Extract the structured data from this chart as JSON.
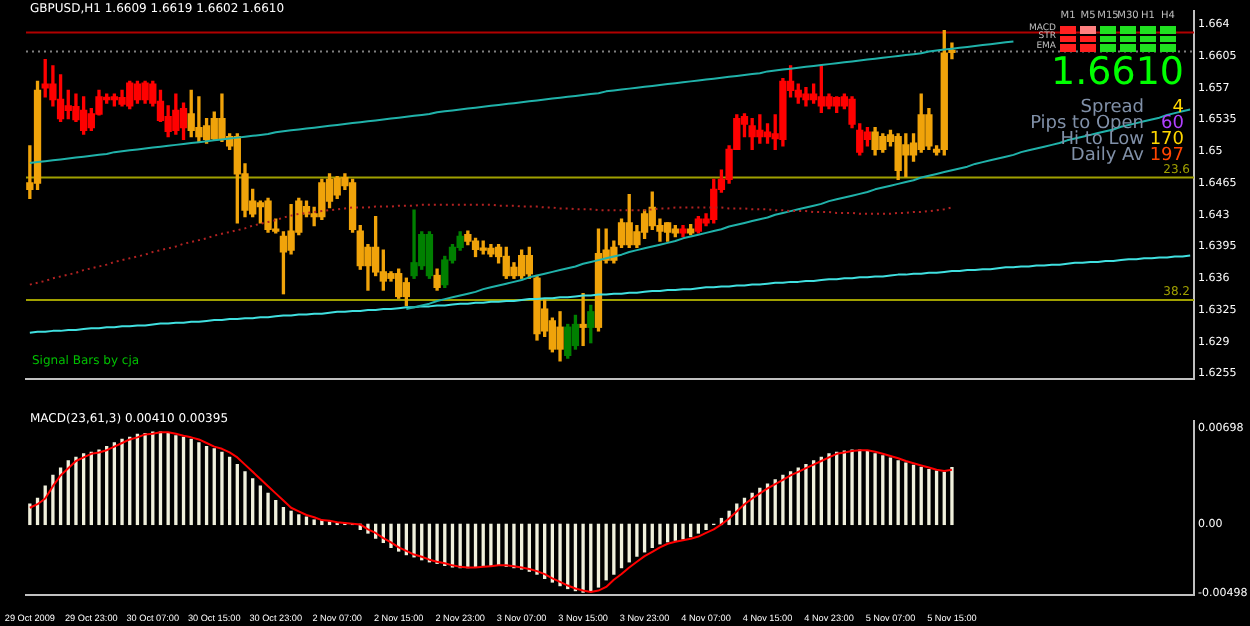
{
  "chart_data": [
    {
      "type": "candlestick",
      "title": "GBPUSD,H1 1.6609 1.6619 1.6602 1.6610",
      "categories": [
        null,
        null,
        null,
        null,
        null,
        null,
        null,
        null,
        null,
        null,
        null,
        null,
        null,
        null,
        null,
        null,
        null,
        null,
        null,
        null,
        null,
        null,
        null,
        null,
        null,
        null,
        null,
        null,
        null,
        null,
        null,
        null,
        null,
        null,
        null,
        null,
        null,
        null,
        null,
        null,
        null,
        null,
        null,
        null,
        null,
        null,
        null,
        null,
        null,
        null,
        null,
        null,
        null,
        null,
        null,
        null,
        null,
        null,
        null,
        null,
        null,
        null,
        null,
        null,
        null,
        null,
        null,
        null,
        null,
        null,
        null,
        null,
        null,
        null,
        null,
        null,
        null,
        null,
        null,
        null,
        null,
        null,
        null,
        null,
        null,
        null,
        null,
        null,
        null,
        null,
        null,
        null,
        null,
        null,
        null,
        null,
        null,
        null,
        null,
        null,
        null,
        null,
        null,
        null,
        null,
        null,
        null,
        null,
        null,
        null,
        null,
        null,
        null,
        null,
        null,
        null,
        null,
        null,
        null,
        null,
        null,
        null,
        null,
        null,
        null,
        null,
        null,
        null,
        null,
        null,
        null,
        null,
        null,
        null,
        null,
        null,
        null,
        null,
        null,
        null,
        null,
        null,
        null,
        null,
        null,
        null,
        null,
        null,
        null,
        null,
        null,
        null
      ],
      "ohlc": [
        [
          1.6458,
          1.6506,
          1.6448,
          1.6465
        ],
        [
          1.6465,
          1.6577,
          1.6458,
          1.6567
        ],
        [
          1.6574,
          1.6601,
          1.656,
          1.657
        ],
        [
          1.6574,
          1.6594,
          1.655,
          1.6557
        ],
        [
          1.6557,
          1.6584,
          1.6533,
          1.6536
        ],
        [
          1.655,
          1.6567,
          1.6536,
          1.6545
        ],
        [
          1.6549,
          1.6563,
          1.6533,
          1.6535
        ],
        [
          1.6545,
          1.656,
          1.6519,
          1.6523
        ],
        [
          1.6541,
          1.6547,
          1.6523,
          1.6526
        ],
        [
          1.656,
          1.6567,
          1.654,
          1.6541
        ],
        [
          1.6559,
          1.6563,
          1.6553,
          1.6557
        ],
        [
          1.656,
          1.6563,
          1.655,
          1.6557
        ],
        [
          1.6559,
          1.6567,
          1.655,
          1.6552
        ],
        [
          1.6575,
          1.6577,
          1.6547,
          1.655
        ],
        [
          1.6574,
          1.6577,
          1.6553,
          1.6557
        ],
        [
          1.6575,
          1.6577,
          1.6553,
          1.6557
        ],
        [
          1.6574,
          1.6577,
          1.655,
          1.6553
        ],
        [
          1.6555,
          1.6567,
          1.6533,
          1.6534
        ],
        [
          1.6538,
          1.655,
          1.6516,
          1.6522
        ],
        [
          1.6545,
          1.6563,
          1.6519,
          1.6523
        ],
        [
          1.6547,
          1.6553,
          1.6513,
          1.6526
        ],
        [
          1.6523,
          1.6567,
          1.6516,
          1.6541
        ],
        [
          1.6516,
          1.656,
          1.6511,
          1.6526
        ],
        [
          1.6513,
          1.6536,
          1.6509,
          1.6528
        ],
        [
          1.6514,
          1.6543,
          1.6513,
          1.6536
        ],
        [
          1.6514,
          1.6563,
          1.6511,
          1.6536
        ],
        [
          1.6506,
          1.6519,
          1.6502,
          1.6516
        ],
        [
          1.6475,
          1.6519,
          1.6421,
          1.6516
        ],
        [
          1.6435,
          1.6486,
          1.6428,
          1.6475
        ],
        [
          1.6431,
          1.6458,
          1.6428,
          1.6445
        ],
        [
          1.6439,
          1.6445,
          1.6421,
          1.6443
        ],
        [
          1.6414,
          1.6448,
          1.6411,
          1.6445
        ],
        [
          1.6412,
          1.6425,
          1.641,
          1.6414
        ],
        [
          1.6389,
          1.6411,
          1.6343,
          1.6406
        ],
        [
          1.6391,
          1.6441,
          1.6387,
          1.6412
        ],
        [
          1.6411,
          1.6448,
          1.6408,
          1.6445
        ],
        [
          1.6431,
          1.6445,
          1.6428,
          1.6439
        ],
        [
          1.6428,
          1.6438,
          1.6418,
          1.6431
        ],
        [
          1.6428,
          1.6469,
          1.6425,
          1.6465
        ],
        [
          1.6445,
          1.6475,
          1.6438,
          1.6469
        ],
        [
          1.6452,
          1.6472,
          1.6448,
          1.647
        ],
        [
          1.6462,
          1.6475,
          1.6458,
          1.6471
        ],
        [
          1.6414,
          1.6469,
          1.6411,
          1.6465
        ],
        [
          1.6374,
          1.6418,
          1.637,
          1.6412
        ],
        [
          1.6374,
          1.6397,
          1.6347,
          1.6394
        ],
        [
          1.6367,
          1.6428,
          1.6363,
          1.6394
        ],
        [
          1.6357,
          1.6391,
          1.6347,
          1.6367
        ],
        [
          1.636,
          1.6367,
          1.6357,
          1.6365
        ],
        [
          1.634,
          1.637,
          1.6338,
          1.6365
        ],
        [
          1.634,
          1.636,
          1.633,
          1.6355
        ],
        [
          1.6363,
          1.6435,
          1.636,
          1.6377
        ],
        [
          1.6374,
          1.6411,
          1.637,
          1.6408
        ],
        [
          1.6363,
          1.6411,
          1.636,
          1.6408
        ],
        [
          1.635,
          1.637,
          1.6347,
          1.6363
        ],
        [
          1.6353,
          1.6384,
          1.635,
          1.638
        ],
        [
          1.638,
          1.6397,
          1.6377,
          1.6394
        ],
        [
          1.6394,
          1.6411,
          1.6391,
          1.6406
        ],
        [
          1.6401,
          1.6412,
          1.6397,
          1.6408
        ],
        [
          1.6392,
          1.6404,
          1.6384,
          1.6401
        ],
        [
          1.6391,
          1.6401,
          1.6387,
          1.6393
        ],
        [
          1.6387,
          1.6397,
          1.6384,
          1.6393
        ],
        [
          1.6384,
          1.6397,
          1.6377,
          1.6394
        ],
        [
          1.6363,
          1.6394,
          1.636,
          1.6384
        ],
        [
          1.6363,
          1.6377,
          1.636,
          1.6372
        ],
        [
          1.6363,
          1.6391,
          1.636,
          1.6385
        ],
        [
          1.6365,
          1.6394,
          1.636,
          1.6385
        ],
        [
          1.6299,
          1.6363,
          1.6292,
          1.636
        ],
        [
          1.6302,
          1.6336,
          1.6296,
          1.6326
        ],
        [
          1.6282,
          1.6316,
          1.6279,
          1.6313
        ],
        [
          1.6282,
          1.6323,
          1.6269,
          1.6306
        ],
        [
          1.6275,
          1.6309,
          1.6272,
          1.6306
        ],
        [
          1.6286,
          1.6319,
          1.6282,
          1.6309
        ],
        [
          1.6306,
          1.6343,
          1.6286,
          1.6309
        ],
        [
          1.6306,
          1.633,
          1.6289,
          1.6323
        ],
        [
          1.6306,
          1.6414,
          1.6302,
          1.6387
        ],
        [
          1.638,
          1.6414,
          1.6377,
          1.6391
        ],
        [
          1.638,
          1.6401,
          1.6377,
          1.6394
        ],
        [
          1.6397,
          1.6425,
          1.6394,
          1.6421
        ],
        [
          1.6397,
          1.6452,
          1.6394,
          1.6421
        ],
        [
          1.6397,
          1.6418,
          1.6394,
          1.6411
        ],
        [
          1.6411,
          1.6435,
          1.6404,
          1.6431
        ],
        [
          1.6418,
          1.6455,
          1.6414,
          1.6438
        ],
        [
          1.6412,
          1.6425,
          1.6401,
          1.6418
        ],
        [
          1.6411,
          1.6421,
          1.6401,
          1.6421
        ],
        [
          1.641,
          1.6418,
          1.6406,
          1.6414
        ],
        [
          1.6414,
          1.6418,
          1.6406,
          1.641
        ],
        [
          1.641,
          1.6419,
          1.6408,
          1.6414
        ],
        [
          1.6425,
          1.6428,
          1.641,
          1.6412
        ],
        [
          1.6425,
          1.6431,
          1.6418,
          1.6421
        ],
        [
          1.6458,
          1.6469,
          1.6421,
          1.6425
        ],
        [
          1.6469,
          1.6479,
          1.6455,
          1.6458
        ],
        [
          1.6502,
          1.6506,
          1.6465,
          1.6469
        ],
        [
          1.6536,
          1.654,
          1.6502,
          1.6502
        ],
        [
          1.6538,
          1.6541,
          1.6516,
          1.653
        ],
        [
          1.6528,
          1.6536,
          1.6502,
          1.6516
        ],
        [
          1.6523,
          1.654,
          1.6509,
          1.6516
        ],
        [
          1.6521,
          1.653,
          1.6509,
          1.6516
        ],
        [
          1.6519,
          1.654,
          1.6502,
          1.6514
        ],
        [
          1.6577,
          1.658,
          1.6506,
          1.6513
        ],
        [
          1.6577,
          1.6594,
          1.656,
          1.6567
        ],
        [
          1.6567,
          1.6574,
          1.6553,
          1.656
        ],
        [
          1.6563,
          1.657,
          1.655,
          1.6557
        ],
        [
          1.6563,
          1.6574,
          1.6553,
          1.6557
        ],
        [
          1.656,
          1.6594,
          1.6543,
          1.655
        ],
        [
          1.656,
          1.6563,
          1.6547,
          1.655
        ],
        [
          1.6559,
          1.656,
          1.6543,
          1.655
        ],
        [
          1.656,
          1.6563,
          1.6547,
          1.655
        ],
        [
          1.6557,
          1.656,
          1.6526,
          1.653
        ],
        [
          1.6523,
          1.653,
          1.6496,
          1.6499
        ],
        [
          1.6521,
          1.6526,
          1.6506,
          1.6513
        ],
        [
          1.6502,
          1.6526,
          1.6496,
          1.6521
        ],
        [
          1.6502,
          1.6519,
          1.6499,
          1.6516
        ],
        [
          1.6511,
          1.6523,
          1.6506,
          1.6518
        ],
        [
          1.6479,
          1.6519,
          1.6469,
          1.6516
        ],
        [
          1.6496,
          1.6519,
          1.6472,
          1.6507
        ],
        [
          1.6496,
          1.6519,
          1.6489,
          1.6509
        ],
        [
          1.6502,
          1.6563,
          1.6499,
          1.654
        ],
        [
          1.6506,
          1.6547,
          1.6502,
          1.654
        ],
        [
          1.6499,
          1.6506,
          1.6496,
          1.6502
        ],
        [
          1.6502,
          1.6633,
          1.6496,
          1.6608
        ],
        [
          1.6609,
          1.6619,
          1.6602,
          1.661
        ],
        null,
        null,
        null,
        null,
        null,
        null,
        null,
        null,
        null,
        null,
        null,
        null,
        null,
        null,
        null,
        null,
        null,
        null,
        null,
        null,
        null,
        null,
        null,
        null,
        null,
        null,
        null,
        null,
        null,
        null,
        null
      ],
      "colors": [
        "#f0a30a",
        "#f0a30a",
        "#ff0000",
        "#ff0000",
        "#ff0000",
        "#ff0000",
        "#ff0000",
        "#ff0000",
        "#ff0000",
        "#ff0000",
        "#ff0000",
        "#ff0000",
        "#ff0000",
        "#ff0000",
        "#ff0000",
        "#ff0000",
        "#ff0000",
        "#ff0000",
        "#ff0000",
        "#ff0000",
        "#ff0000",
        "#f0a30a",
        "#f0a30a",
        "#f0a30a",
        "#f0a30a",
        "#f0a30a",
        "#f0a30a",
        "#f0a30a",
        "#f0a30a",
        "#f0a30a",
        "#f0a30a",
        "#f0a30a",
        "#f0a30a",
        "#f0a30a",
        "#f0a30a",
        "#f0a30a",
        "#f0a30a",
        "#f0a30a",
        "#f0a30a",
        "#f0a30a",
        "#f0a30a",
        "#f0a30a",
        "#f0a30a",
        "#f0a30a",
        "#f0a30a",
        "#f0a30a",
        "#f0a30a",
        "#f0a30a",
        "#f0a30a",
        "#f0a30a",
        "#008000",
        "#008000",
        "#008000",
        "#f0a30a",
        "#008000",
        "#008000",
        "#008000",
        "#f0a30a",
        "#f0a30a",
        "#f0a30a",
        "#f0a30a",
        "#f0a30a",
        "#f0a30a",
        "#f0a30a",
        "#f0a30a",
        "#f0a30a",
        "#f0a30a",
        "#f0a30a",
        "#f0a30a",
        "#f0a30a",
        "#008000",
        "#008000",
        "#f0a30a",
        "#008000",
        "#f0a30a",
        "#f0a30a",
        "#f0a30a",
        "#f0a30a",
        "#f0a30a",
        "#f0a30a",
        "#f0a30a",
        "#f0a30a",
        "#f0a30a",
        "#f0a30a",
        "#f0a30a",
        "#ff0000",
        "#f0a30a",
        "#ff0000",
        "#ff0000",
        "#ff0000",
        "#ff0000",
        "#ff0000",
        "#ff0000",
        "#ff0000",
        "#ff0000",
        "#ff0000",
        "#ff0000",
        "#ff0000",
        "#ff0000",
        "#ff0000",
        "#ff0000",
        "#ff0000",
        "#ff0000",
        "#ff0000",
        "#ff0000",
        "#ff0000",
        "#ff0000",
        "#ff0000",
        "#ff0000",
        "#ff0000",
        "#f0a30a",
        "#f0a30a",
        "#f0a30a",
        "#f0a30a",
        "#f0a30a",
        "#f0a30a",
        "#f0a30a",
        "#f0a30a",
        "#f0a30a",
        "#f0a30a",
        "#f0a30a",
        null,
        null,
        null,
        null,
        null,
        null,
        null,
        null,
        null,
        null,
        null,
        null,
        null,
        null,
        null,
        null,
        null,
        null,
        null,
        null,
        null,
        null,
        null,
        null,
        null,
        null,
        null,
        null,
        null,
        null,
        null
      ],
      "series": [
        {
          "type": "line",
          "color": "#b22222",
          "line_style": "dotted",
          "values": [
            1.6353,
            1.6355,
            1.6357,
            1.636,
            1.6362,
            1.6364,
            1.6366,
            1.6369,
            1.6371,
            1.6373,
            1.6375,
            1.6378,
            1.638,
            1.6382,
            1.6384,
            1.6386,
            1.6389,
            1.6391,
            1.6393,
            1.6395,
            1.6398,
            1.64,
            1.6402,
            1.6404,
            1.6407,
            1.6409,
            1.6411,
            1.6413,
            1.6415,
            1.6418,
            1.642,
            1.6422,
            1.6424,
            1.6427,
            1.6429,
            1.6431,
            1.6432,
            1.6433,
            1.6434,
            1.6435,
            1.6436,
            1.6437,
            1.6438,
            1.6438,
            1.6438,
            1.6439,
            1.6439,
            1.6439,
            1.644,
            1.644,
            1.644,
            1.6441,
            1.6441,
            1.6441,
            1.6441,
            1.6441,
            1.6441,
            1.6441,
            1.6441,
            1.6441,
            1.6441,
            1.644,
            1.644,
            1.644,
            1.6439,
            1.6439,
            1.6439,
            1.6438,
            1.6438,
            1.6437,
            1.6437,
            1.6436,
            1.6436,
            1.6436,
            1.6435,
            1.6435,
            1.6435,
            1.6435,
            1.6435,
            1.6435,
            1.6435,
            1.6436,
            1.6437,
            1.6437,
            1.6438,
            1.6438,
            1.6438,
            1.6438,
            1.6438,
            1.6438,
            1.6438,
            1.6437,
            1.6437,
            1.6437,
            1.6436,
            1.6436,
            1.6436,
            1.6435,
            1.6435,
            1.6434,
            1.6434,
            1.6434,
            1.6433,
            1.6433,
            1.6433,
            1.6432,
            1.6432,
            1.6432,
            1.6431,
            1.6431,
            1.6431,
            1.6431,
            1.6431,
            1.6432,
            1.6432,
            1.6433,
            1.6433,
            1.6434,
            1.6435,
            1.6436,
            1.6438,
            null,
            null,
            null,
            null,
            null,
            null,
            null,
            null,
            null,
            null,
            null,
            null,
            null,
            null,
            null,
            null,
            null,
            null,
            null,
            null,
            null,
            null,
            null,
            null,
            null,
            null,
            null,
            null,
            null,
            null,
            null
          ]
        },
        {
          "type": "line",
          "color": "#20b2aa",
          "values": [
            1.6487,
            1.6488,
            1.6489,
            1.649,
            1.6491,
            1.6492,
            1.6493,
            1.6494,
            1.6495,
            1.6496,
            1.6497,
            1.6499,
            1.65,
            1.6501,
            1.6502,
            1.6503,
            1.6504,
            1.6505,
            1.6506,
            1.6507,
            1.6508,
            1.6509,
            1.651,
            1.6511,
            1.6512,
            1.6513,
            1.6514,
            1.6515,
            1.6516,
            1.6517,
            1.6518,
            1.6519,
            1.6521,
            1.6522,
            1.6523,
            1.6524,
            1.6525,
            1.6526,
            1.6527,
            1.6528,
            1.6529,
            1.653,
            1.6531,
            1.6532,
            1.6533,
            1.6534,
            1.6535,
            1.6536,
            1.6537,
            1.6538,
            1.6539,
            1.654,
            1.6541,
            1.6543,
            1.6544,
            1.6545,
            1.6546,
            1.6547,
            1.6548,
            1.6549,
            1.655,
            1.6551,
            1.6552,
            1.6553,
            1.6554,
            1.6555,
            1.6556,
            1.6557,
            1.6558,
            1.6559,
            1.656,
            1.6561,
            1.6562,
            1.6563,
            1.6564,
            1.6566,
            1.6567,
            1.6568,
            1.6569,
            1.657,
            1.6571,
            1.6572,
            1.6573,
            1.6574,
            1.6575,
            1.6576,
            1.6577,
            1.6578,
            1.6579,
            1.658,
            1.6581,
            1.6582,
            1.6583,
            1.6584,
            1.6585,
            1.6586,
            1.6588,
            1.6589,
            1.659,
            1.6591,
            1.6592,
            1.6593,
            1.6594,
            1.6595,
            1.6596,
            1.6597,
            1.6598,
            1.6599,
            1.66,
            1.6601,
            1.6602,
            1.6603,
            1.6604,
            1.6605,
            1.6606,
            1.6607,
            1.6608,
            1.661,
            1.6611,
            1.6612,
            1.6613,
            1.6614,
            1.6615,
            1.6616,
            1.6617,
            1.6618,
            1.6619,
            1.662,
            1.6621,
            null,
            null,
            null,
            null,
            null,
            null,
            null,
            null,
            null,
            null,
            null,
            null,
            null,
            null,
            null,
            null,
            null,
            null,
            null,
            null,
            null,
            null,
            null
          ]
        },
        {
          "type": "line",
          "color": "#20b2aa",
          "values": [
            null,
            null,
            null,
            null,
            null,
            null,
            null,
            null,
            null,
            null,
            null,
            null,
            null,
            null,
            null,
            null,
            null,
            null,
            null,
            null,
            null,
            null,
            null,
            null,
            null,
            null,
            null,
            null,
            null,
            null,
            null,
            null,
            null,
            null,
            null,
            null,
            null,
            null,
            null,
            null,
            null,
            null,
            null,
            null,
            null,
            null,
            null,
            null,
            null,
            1.6326,
            1.6328,
            1.633,
            1.6332,
            1.6335,
            1.6337,
            1.6339,
            1.6341,
            1.6343,
            1.6345,
            1.6348,
            1.635,
            1.6352,
            1.6354,
            1.6356,
            1.6358,
            1.6361,
            1.6363,
            1.6365,
            1.6367,
            1.6369,
            1.6371,
            1.6373,
            1.6376,
            1.6378,
            1.638,
            1.6382,
            1.6384,
            1.6386,
            1.6389,
            1.6391,
            1.6393,
            1.6395,
            1.6397,
            1.6399,
            1.6401,
            1.6404,
            1.6406,
            1.6408,
            1.641,
            1.6412,
            1.6414,
            1.6417,
            1.6419,
            1.6421,
            1.6423,
            1.6425,
            1.6427,
            1.643,
            1.6432,
            1.6434,
            1.6436,
            1.6438,
            1.644,
            1.6442,
            1.6445,
            1.6447,
            1.6449,
            1.6451,
            1.6453,
            1.6455,
            1.6458,
            1.646,
            1.6462,
            1.6464,
            1.6466,
            1.6468,
            1.6471,
            1.6473,
            1.6475,
            1.6477,
            1.6479,
            1.6481,
            1.6483,
            1.6486,
            1.6488,
            1.649,
            1.6492,
            1.6494,
            1.6496,
            1.6499,
            1.6501,
            1.6503,
            1.6505,
            1.6507,
            1.6509,
            1.6512,
            1.6514,
            1.6516,
            1.6518,
            1.652,
            1.6522,
            1.6524,
            1.6527,
            1.6529,
            1.6531,
            1.6533,
            1.6535,
            1.6537,
            1.654,
            1.6542,
            1.6544,
            1.6546
          ]
        },
        {
          "type": "line",
          "color": "#40e0e0",
          "values": [
            1.63,
            1.6301,
            1.6301,
            1.6302,
            1.6302,
            1.6303,
            1.6303,
            1.6304,
            1.6305,
            1.6305,
            1.6306,
            1.6306,
            1.6307,
            1.6307,
            1.6308,
            1.6308,
            1.6309,
            1.631,
            1.631,
            1.6311,
            1.6311,
            1.6312,
            1.6312,
            1.6313,
            1.6314,
            1.6314,
            1.6315,
            1.6315,
            1.6316,
            1.6316,
            1.6317,
            1.6317,
            1.6318,
            1.6319,
            1.6319,
            1.632,
            1.632,
            1.6321,
            1.6321,
            1.6322,
            1.6323,
            1.6323,
            1.6324,
            1.6324,
            1.6325,
            1.6325,
            1.6326,
            1.6326,
            1.6327,
            1.6328,
            1.6328,
            1.6329,
            1.6329,
            1.633,
            1.633,
            1.6331,
            1.6332,
            1.6332,
            1.6333,
            1.6333,
            1.6334,
            1.6334,
            1.6335,
            1.6335,
            1.6336,
            1.6337,
            1.6337,
            1.6338,
            1.6338,
            1.6339,
            1.6339,
            1.634,
            1.6341,
            1.6341,
            1.6342,
            1.6342,
            1.6343,
            1.6343,
            1.6344,
            1.6344,
            1.6345,
            1.6346,
            1.6346,
            1.6347,
            1.6347,
            1.6348,
            1.6348,
            1.6349,
            1.635,
            1.635,
            1.6351,
            1.6351,
            1.6352,
            1.6352,
            1.6353,
            1.6353,
            1.6354,
            1.6355,
            1.6355,
            1.6356,
            1.6356,
            1.6357,
            1.6357,
            1.6358,
            1.6359,
            1.6359,
            1.636,
            1.636,
            1.6361,
            1.6361,
            1.6362,
            1.6362,
            1.6363,
            1.6364,
            1.6364,
            1.6365,
            1.6365,
            1.6366,
            1.6366,
            1.6367,
            1.6368,
            1.6368,
            1.6369,
            1.6369,
            1.637,
            1.637,
            1.6371,
            1.6372,
            1.6372,
            1.6373,
            1.6373,
            1.6374,
            1.6374,
            1.6375,
            1.6375,
            1.6376,
            1.6377,
            1.6377,
            1.6378,
            1.6378,
            1.6379,
            1.6379,
            1.638,
            1.6381,
            1.6381,
            1.6382,
            1.6382,
            1.6383,
            1.6383,
            1.6384,
            1.6384,
            1.6385
          ]
        }
      ],
      "ylim": [
        1.6249,
        1.6655
      ],
      "yticks": [
        1.6255,
        1.629,
        1.6325,
        1.636,
        1.6395,
        1.643,
        1.6465,
        1.65,
        1.6535,
        1.657,
        1.6605,
        1.664
      ],
      "ref_lines": [
        {
          "axis": "y",
          "value": 1.6471,
          "color": "#a0a000"
        },
        {
          "axis": "y",
          "value": 1.6336,
          "color": "#a0a000"
        },
        {
          "axis": "y",
          "value": 1.6631,
          "color": "#b00000"
        },
        {
          "axis": "y",
          "value": 1.661,
          "color": "#808080",
          "line_style": "dotted"
        }
      ],
      "annotations": [
        "M1",
        "M5",
        "M15",
        "M30",
        "H1",
        "H4",
        "MACD",
        "STR",
        "EMA",
        "1.6610",
        "Spread",
        "4",
        "Pips to Open",
        "60",
        "Hi to Low",
        "170",
        "Daily Av",
        "197",
        "Signal Bars by cja",
        {
          "text": "23.6",
          "y": 1.6471
        },
        {
          "text": "38.2",
          "y": 1.6336
        }
      ]
    },
    {
      "type": "bar",
      "title": "MACD(23,61,3) 0.00410 0.00395",
      "categories": [
        "29 Oct 2009",
        null,
        null,
        null,
        null,
        null,
        null,
        null,
        "29 Oct 23:00",
        null,
        null,
        null,
        null,
        null,
        null,
        null,
        "30 Oct 07:00",
        null,
        null,
        null,
        null,
        null,
        null,
        null,
        "30 Oct 15:00",
        null,
        null,
        null,
        null,
        null,
        null,
        null,
        "30 Oct 23:00",
        null,
        null,
        null,
        null,
        null,
        null,
        null,
        "2 Nov 07:00",
        null,
        null,
        null,
        null,
        null,
        null,
        null,
        "2 Nov 15:00",
        null,
        null,
        null,
        null,
        null,
        null,
        null,
        "2 Nov 23:00",
        null,
        null,
        null,
        null,
        null,
        null,
        null,
        "3 Nov 07:00",
        null,
        null,
        null,
        null,
        null,
        null,
        null,
        "3 Nov 15:00",
        null,
        null,
        null,
        null,
        null,
        null,
        null,
        "3 Nov 23:00",
        null,
        null,
        null,
        null,
        null,
        null,
        null,
        "4 Nov 07:00",
        null,
        null,
        null,
        null,
        null,
        null,
        null,
        "4 Nov 15:00",
        null,
        null,
        null,
        null,
        null,
        null,
        null,
        "4 Nov 23:00",
        null,
        null,
        null,
        null,
        null,
        null,
        null,
        "5 Nov 07:00",
        null,
        null,
        null,
        null,
        null,
        null,
        null,
        "5 Nov 15:00",
        null,
        null,
        null,
        null,
        null,
        null,
        null,
        null,
        null,
        null,
        null,
        null,
        null,
        null,
        null,
        null,
        null,
        null,
        null,
        null,
        null,
        null,
        null,
        null,
        null,
        null,
        null,
        null,
        null,
        null,
        null
      ],
      "series": [
        {
          "type": "bar",
          "color": "#f0f0dc",
          "values": [
            0.00146,
            0.00187,
            0.00276,
            0.00354,
            0.00406,
            0.00458,
            0.00484,
            0.0051,
            0.0052,
            0.00536,
            0.00562,
            0.00588,
            0.00614,
            0.00629,
            0.0065,
            0.00655,
            0.00666,
            0.00666,
            0.00655,
            0.0064,
            0.00629,
            0.00614,
            0.00588,
            0.00562,
            0.00546,
            0.0052,
            0.00484,
            0.00432,
            0.0038,
            0.00328,
            0.00276,
            0.00224,
            0.00172,
            0.0012,
            0.00094,
            0.00068,
            0.00052,
            0.00031,
            0.00026,
            0.00016,
            0.0001,
            5e-05,
            0,
            -0.00036,
            -0.00062,
            -0.00099,
            -0.0013,
            -0.00166,
            -0.00192,
            -0.00218,
            -0.00234,
            -0.00255,
            -0.0027,
            -0.00281,
            -0.00296,
            -0.00307,
            -0.00312,
            -0.00312,
            -0.00307,
            -0.00302,
            -0.00296,
            -0.00296,
            -0.00302,
            -0.00312,
            -0.00322,
            -0.00338,
            -0.00359,
            -0.0039,
            -0.00416,
            -0.00442,
            -0.00463,
            -0.00478,
            -0.00489,
            -0.00478,
            -0.00452,
            -0.004,
            -0.00359,
            -0.00312,
            -0.0027,
            -0.00229,
            -0.00198,
            -0.00166,
            -0.0014,
            -0.00125,
            -0.00114,
            -0.00104,
            -0.00088,
            -0.00062,
            -0.00036,
            0,
            0.00042,
            0.00094,
            0.00146,
            0.00187,
            0.00224,
            0.0026,
            0.00291,
            0.00322,
            0.00354,
            0.0038,
            0.00406,
            0.00432,
            0.00458,
            0.00484,
            0.0051,
            0.0052,
            0.0053,
            0.00536,
            0.00536,
            0.00525,
            0.0051,
            0.00494,
            0.00478,
            0.00458,
            0.00442,
            0.00426,
            0.00411,
            0.00395,
            0.00385,
            0.00374,
            0.0041,
            null,
            null,
            null,
            null,
            null,
            null,
            null,
            null,
            null,
            null,
            null,
            null,
            null,
            null,
            null,
            null,
            null,
            null,
            null,
            null,
            null,
            null,
            null,
            null,
            null,
            null,
            null,
            null,
            null,
            null,
            null
          ]
        },
        {
          "type": "line",
          "color": "#ff0000",
          "values": [
            0.0012,
            0.00146,
            0.00187,
            0.00276,
            0.00354,
            0.00406,
            0.00458,
            0.00484,
            0.0051,
            0.0052,
            0.00536,
            0.00562,
            0.00588,
            0.00614,
            0.00629,
            0.0065,
            0.00655,
            0.00666,
            0.00666,
            0.00655,
            0.0064,
            0.00629,
            0.00614,
            0.00588,
            0.00562,
            0.00546,
            0.0052,
            0.00484,
            0.00432,
            0.0038,
            0.00328,
            0.00276,
            0.00224,
            0.00172,
            0.0012,
            0.00094,
            0.00068,
            0.00052,
            0.00031,
            0.00026,
            0.00016,
            0.0001,
            5e-05,
            0,
            -0.00036,
            -0.00062,
            -0.00099,
            -0.0013,
            -0.00166,
            -0.00192,
            -0.00218,
            -0.00234,
            -0.00255,
            -0.0027,
            -0.00281,
            -0.00296,
            -0.00307,
            -0.00312,
            -0.00312,
            -0.00307,
            -0.00302,
            -0.00296,
            -0.00296,
            -0.00302,
            -0.00312,
            -0.00322,
            -0.00338,
            -0.00359,
            -0.0039,
            -0.00416,
            -0.00442,
            -0.00463,
            -0.00478,
            -0.00489,
            -0.00478,
            -0.00452,
            -0.004,
            -0.00359,
            -0.00312,
            -0.0027,
            -0.00229,
            -0.00198,
            -0.00166,
            -0.0014,
            -0.00125,
            -0.00114,
            -0.00104,
            -0.00088,
            -0.00062,
            -0.00036,
            0,
            0.00042,
            0.00094,
            0.00146,
            0.00187,
            0.00224,
            0.0026,
            0.00291,
            0.00322,
            0.00354,
            0.0038,
            0.00406,
            0.00432,
            0.00458,
            0.00484,
            0.0051,
            0.0052,
            0.0053,
            0.00536,
            0.00536,
            0.00525,
            0.0051,
            0.00494,
            0.00478,
            0.00458,
            0.00442,
            0.00426,
            0.00411,
            0.00395,
            0.00385,
            0.00395,
            null,
            null,
            null,
            null,
            null,
            null,
            null,
            null,
            null,
            null,
            null,
            null,
            null,
            null,
            null,
            null,
            null,
            null,
            null,
            null,
            null,
            null,
            null,
            null,
            null,
            null,
            null,
            null,
            null,
            null,
            null
          ]
        }
      ],
      "ylim": [
        -0.0051,
        0.0075
      ],
      "yticks": [
        {
          "value": 0.00698,
          "label": "0.00698"
        },
        {
          "value": 0,
          "label": "0.00"
        },
        {
          "value": -0.00498,
          "label": "-0.00498"
        }
      ]
    }
  ]
}
